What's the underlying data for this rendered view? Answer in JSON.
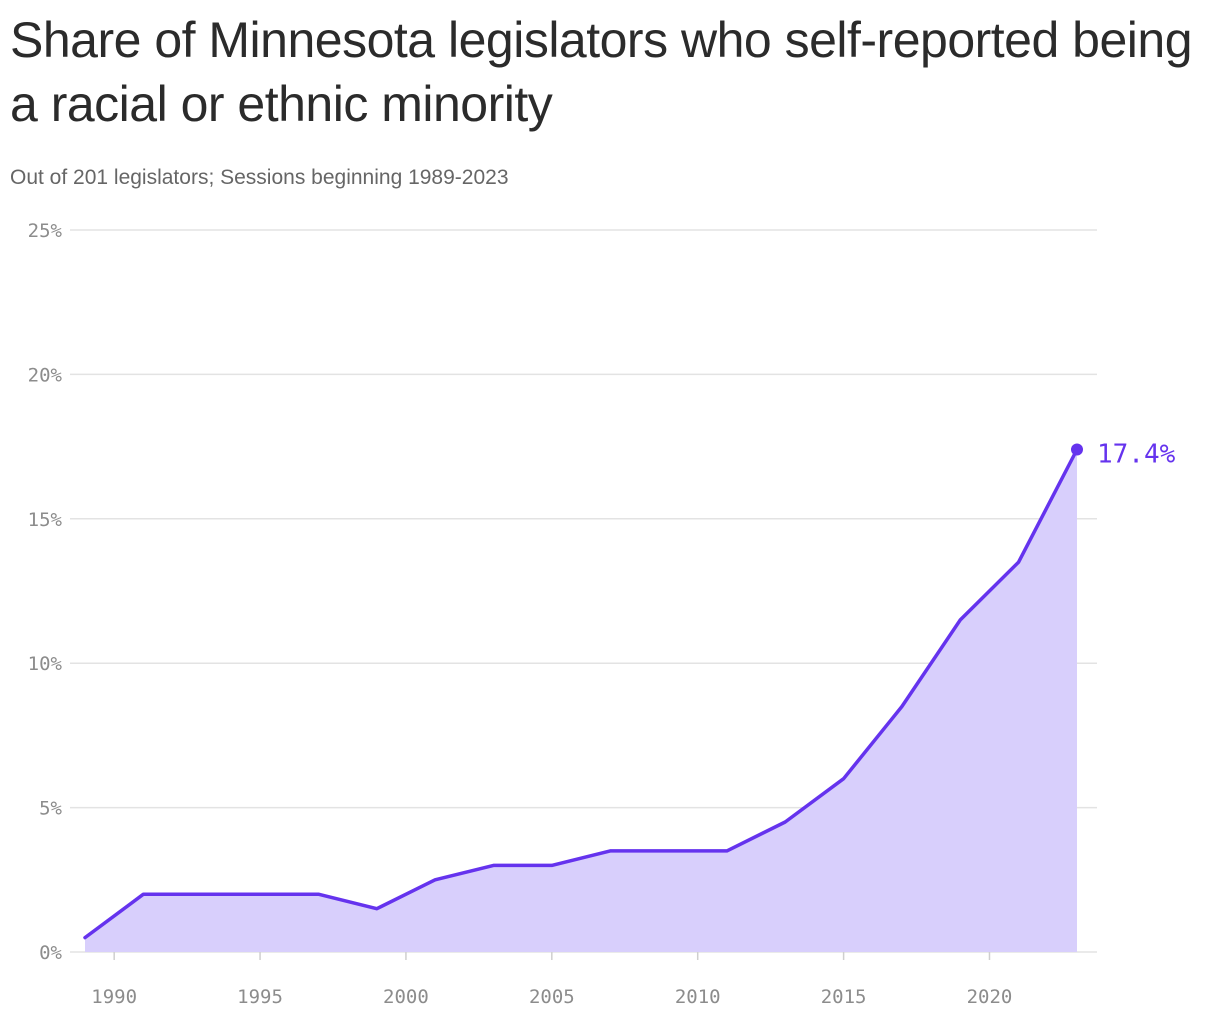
{
  "title": "Share of Minnesota legislators who self-reported being a racial or ethnic minority",
  "subtitle": "Out of 201 legislators; Sessions beginning 1989-2023",
  "colors": {
    "line": "#6533ee",
    "fill": "#d8cffc",
    "grid": "#e3e3e3",
    "tick_text": "#8c8c8c"
  },
  "chart_data": {
    "type": "area",
    "x": [
      1989,
      1991,
      1993,
      1995,
      1997,
      1999,
      2001,
      2003,
      2005,
      2007,
      2009,
      2011,
      2013,
      2015,
      2017,
      2019,
      2021,
      2023
    ],
    "values": [
      0.5,
      2.0,
      2.0,
      2.0,
      2.0,
      1.5,
      2.5,
      3.0,
      3.0,
      3.5,
      3.5,
      3.5,
      4.5,
      6.0,
      8.5,
      11.5,
      13.5,
      17.4
    ],
    "title": "Share of Minnesota legislators who self-reported being a racial or ethnic minority",
    "subtitle": "Out of 201 legislators; Sessions beginning 1989-2023",
    "xlabel": "",
    "ylabel": "",
    "xlim": [
      1989,
      2023
    ],
    "ylim": [
      0,
      25
    ],
    "x_ticks": [
      "1990",
      "1995",
      "2000",
      "2005",
      "2010",
      "2015",
      "2020"
    ],
    "y_ticks": [
      "0%",
      "5%",
      "10%",
      "15%",
      "20%",
      "25%"
    ],
    "end_label": "17.4%",
    "grid": true,
    "legend": "none"
  }
}
